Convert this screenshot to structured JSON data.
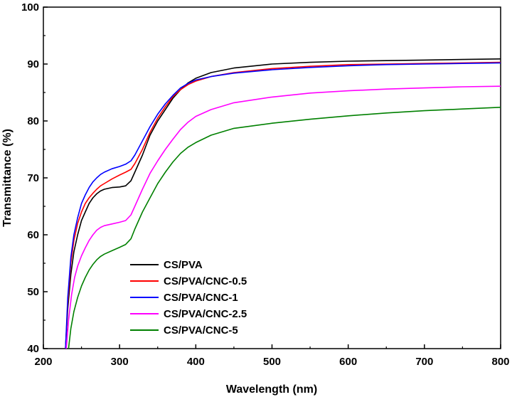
{
  "chart_data": {
    "type": "line",
    "xlabel": "Wavelength (nm)",
    "ylabel": "Transmittance (%)",
    "xlim": [
      200,
      800
    ],
    "ylim": [
      40,
      100
    ],
    "xticks": [
      200,
      300,
      400,
      500,
      600,
      700,
      800
    ],
    "yticks": [
      40,
      50,
      60,
      70,
      80,
      90,
      100
    ],
    "grid": false,
    "legend_position": "lower-center",
    "series": [
      {
        "name": "CS/PVA",
        "color": "#000000",
        "x": [
          229,
          232,
          236,
          240,
          245,
          250,
          255,
          260,
          265,
          270,
          275,
          280,
          290,
          300,
          308,
          315,
          320,
          330,
          340,
          350,
          360,
          370,
          380,
          390,
          400,
          420,
          450,
          500,
          550,
          600,
          650,
          700,
          750,
          800
        ],
        "y": [
          40,
          47,
          53,
          57,
          60,
          62.5,
          64,
          65.5,
          66.5,
          67.2,
          67.7,
          68,
          68.3,
          68.4,
          68.6,
          69.5,
          71,
          74,
          77.5,
          80,
          82,
          84,
          85.5,
          86.7,
          87.5,
          88.5,
          89.3,
          90,
          90.3,
          90.5,
          90.6,
          90.7,
          90.8,
          90.9
        ]
      },
      {
        "name": "CS/PVA/CNC-0.5",
        "color": "#ff0000",
        "x": [
          229,
          232,
          236,
          240,
          245,
          250,
          255,
          260,
          265,
          270,
          275,
          280,
          290,
          300,
          308,
          315,
          320,
          330,
          340,
          350,
          360,
          370,
          380,
          390,
          400,
          420,
          450,
          500,
          550,
          600,
          650,
          700,
          750,
          800
        ],
        "y": [
          40,
          48,
          55,
          59,
          62,
          64,
          65.5,
          66.5,
          67.3,
          68,
          68.6,
          69,
          69.8,
          70.5,
          71,
          71.5,
          72.5,
          75,
          78,
          80.5,
          82.5,
          84.3,
          85.5,
          86.4,
          87,
          87.8,
          88.5,
          89.2,
          89.6,
          89.9,
          90,
          90.1,
          90.2,
          90.3
        ]
      },
      {
        "name": "CS/PVA/CNC-1",
        "color": "#0000ff",
        "x": [
          229,
          232,
          236,
          240,
          245,
          250,
          255,
          260,
          265,
          270,
          275,
          280,
          290,
          300,
          308,
          315,
          320,
          330,
          340,
          350,
          360,
          370,
          380,
          390,
          400,
          420,
          450,
          500,
          550,
          600,
          650,
          700,
          750,
          800
        ],
        "y": [
          40,
          49,
          56,
          60,
          63,
          65.5,
          67,
          68.3,
          69.3,
          70,
          70.6,
          71,
          71.6,
          72,
          72.4,
          73,
          74,
          76.5,
          79,
          81.2,
          83,
          84.5,
          85.8,
          86.6,
          87.2,
          87.8,
          88.4,
          89,
          89.4,
          89.7,
          89.9,
          90,
          90.1,
          90.2
        ]
      },
      {
        "name": "CS/PVA/CNC-2.5",
        "color": "#ff00ff",
        "x": [
          230,
          233,
          237,
          241,
          245,
          250,
          255,
          260,
          265,
          270,
          275,
          280,
          290,
          300,
          308,
          315,
          320,
          330,
          340,
          350,
          360,
          370,
          380,
          390,
          400,
          420,
          450,
          500,
          550,
          600,
          650,
          700,
          750,
          800
        ],
        "y": [
          40,
          45,
          49.5,
          52.5,
          54.5,
          56.3,
          57.7,
          59,
          60,
          60.8,
          61.3,
          61.6,
          61.9,
          62.2,
          62.5,
          63.5,
          65,
          68,
          70.8,
          73,
          75,
          76.8,
          78.5,
          79.8,
          80.8,
          82,
          83.2,
          84.2,
          84.9,
          85.3,
          85.6,
          85.8,
          86,
          86.1
        ]
      },
      {
        "name": "CS/PVA/CNC-5",
        "color": "#008000",
        "x": [
          233,
          236,
          240,
          245,
          250,
          255,
          260,
          265,
          270,
          275,
          280,
          290,
          300,
          308,
          315,
          320,
          330,
          340,
          350,
          360,
          370,
          380,
          390,
          400,
          420,
          450,
          500,
          550,
          600,
          650,
          700,
          750,
          800
        ],
        "y": [
          40,
          43.5,
          46.5,
          49,
          51,
          52.5,
          53.8,
          54.8,
          55.6,
          56.2,
          56.6,
          57.2,
          57.8,
          58.3,
          59.3,
          61,
          64,
          66.5,
          69,
          71,
          72.8,
          74.3,
          75.4,
          76.2,
          77.5,
          78.7,
          79.6,
          80.3,
          80.9,
          81.4,
          81.8,
          82.1,
          82.4
        ]
      }
    ]
  }
}
